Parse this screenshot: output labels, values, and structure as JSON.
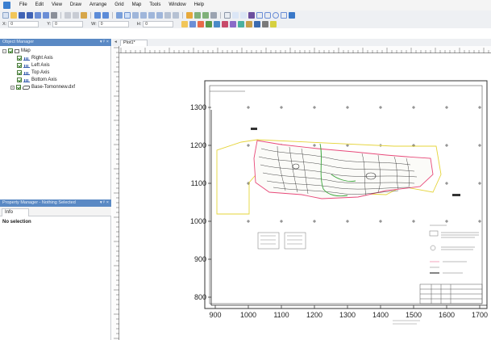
{
  "menubar": {
    "items": [
      "File",
      "Edit",
      "View",
      "Draw",
      "Arrange",
      "Grid",
      "Map",
      "Tools",
      "Window",
      "Help"
    ]
  },
  "toolbar": {
    "coords": [
      {
        "label": "X:",
        "value": "0"
      },
      {
        "label": "Y:",
        "value": "0"
      },
      {
        "label": "W:",
        "value": "0"
      },
      {
        "label": "H:",
        "value": "0"
      }
    ]
  },
  "object_manager": {
    "title": "Object Manager",
    "window_controls": "▾ ᵖ ×",
    "tree": {
      "root": "Map",
      "children": [
        "Right Axis",
        "Left Axis",
        "Top Axis",
        "Bottom Axis",
        "Base-Tomonnew.dxf"
      ]
    }
  },
  "property_manager": {
    "title": "Property Manager - Nothing Selected",
    "window_controls": "▾ ᵖ ×",
    "tab": "Info",
    "empty_text": "No selection"
  },
  "document": {
    "tab": "Plot1*",
    "x_ticks": [
      "900",
      "1000",
      "1100",
      "1200",
      "1300",
      "1400",
      "1500",
      "1600",
      "1700"
    ],
    "y_ticks": [
      "1300",
      "1200",
      "1100",
      "1000",
      "900",
      "800"
    ]
  },
  "colors": {
    "panel_header": "#5a89c4",
    "boundary_pink": "#e84a7a",
    "boundary_yellow": "#e5d43a",
    "contour_green": "#3aa53a"
  }
}
